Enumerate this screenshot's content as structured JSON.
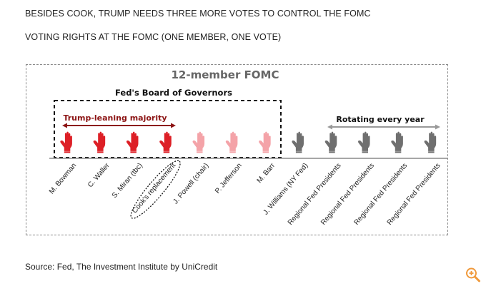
{
  "headline1": "BESIDES COOK, TRUMP NEEDS THREE MORE VOTES TO CONTROL THE FOMC",
  "headline2": "VOTING RIGHTS AT THE FOMC (ONE MEMBER, ONE VOTE)",
  "diagram": {
    "title": "12-member FOMC",
    "board_label": "Fed's Board of Governors",
    "majority_label": "Trump-leaning majority",
    "rotating_label": "Rotating every year",
    "members": [
      {
        "name": "M. Bowman",
        "group": "majority",
        "circled": false
      },
      {
        "name": "C. Waller",
        "group": "majority",
        "circled": false
      },
      {
        "name": "S. Miran (tbc)",
        "group": "majority",
        "circled": false
      },
      {
        "name": "Cook's replacement",
        "group": "majority",
        "circled": true
      },
      {
        "name": "J. Powell (chair)",
        "group": "board",
        "circled": false
      },
      {
        "name": "P. Jefferson",
        "group": "board",
        "circled": false
      },
      {
        "name": "M. Barr",
        "group": "board",
        "circled": false
      },
      {
        "name": "J. Williams (NY Fed)",
        "group": "reserve",
        "circled": false
      },
      {
        "name": "Regional Fed Presidents",
        "group": "reserve",
        "circled": false
      },
      {
        "name": "Regional Fed Presidents",
        "group": "reserve",
        "circled": false
      },
      {
        "name": "Regional Fed Presidents",
        "group": "reserve",
        "circled": false
      },
      {
        "name": "Regional Fed Presidents",
        "group": "reserve",
        "circled": false
      }
    ],
    "colors": {
      "majority": "#dd1f26",
      "board": "#f4a3a8",
      "reserve": "#6f6f6f",
      "arrow_red": "#8c1414",
      "arrow_gray": "#999999",
      "title": "#666666"
    }
  },
  "source": "Source: Fed, The Investment Institute by UniCredit",
  "zoom_icon": "zoom-in-icon",
  "zoom_color": "#f0993a"
}
